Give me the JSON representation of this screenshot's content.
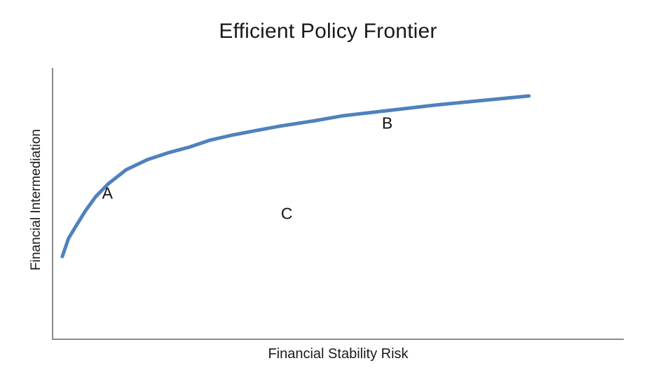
{
  "chart_data": {
    "type": "line",
    "title": "Efficient Policy Frontier",
    "xlabel": "Financial Stability Risk",
    "ylabel": "Financial Intermediation",
    "grid": false,
    "legend": "none",
    "tick_labels": "none",
    "axis_color": "#8c8c8c",
    "text_color": "#1a1a1a",
    "series": [
      {
        "name": "Efficient frontier curve",
        "color": "#4f81bd",
        "stroke_width": 5,
        "points": [
          [
            0.017,
            0.305
          ],
          [
            0.028,
            0.372
          ],
          [
            0.043,
            0.424
          ],
          [
            0.058,
            0.475
          ],
          [
            0.076,
            0.527
          ],
          [
            0.098,
            0.574
          ],
          [
            0.129,
            0.625
          ],
          [
            0.166,
            0.662
          ],
          [
            0.202,
            0.687
          ],
          [
            0.239,
            0.708
          ],
          [
            0.276,
            0.734
          ],
          [
            0.313,
            0.752
          ],
          [
            0.35,
            0.767
          ],
          [
            0.399,
            0.786
          ],
          [
            0.46,
            0.806
          ],
          [
            0.509,
            0.824
          ],
          [
            0.583,
            0.842
          ],
          [
            0.669,
            0.863
          ],
          [
            0.755,
            0.881
          ],
          [
            0.834,
            0.897
          ]
        ]
      }
    ],
    "annotations": [
      {
        "label": "A",
        "x": 0.096,
        "y": 0.537
      },
      {
        "label": "B",
        "x": 0.586,
        "y": 0.796
      },
      {
        "label": "C",
        "x": 0.41,
        "y": 0.462
      }
    ]
  }
}
